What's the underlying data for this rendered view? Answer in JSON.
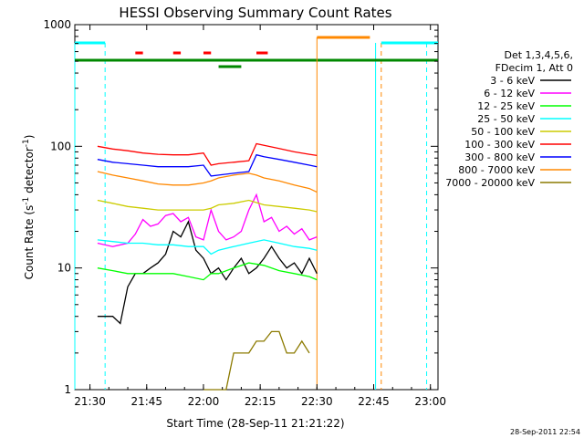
{
  "chart_data": {
    "type": "line",
    "title": "HESSI Observing Summary Count Rates",
    "xlabel": "Start Time (28-Sep-11 21:21:22)",
    "ylabel": "Count Rate (s",
    "ylabel_sup": "-1",
    "ylabel_rest": " detector",
    "ylabel_sup2": "-1",
    "ylabel_end": ")",
    "yscale": "log",
    "ylim": [
      1,
      1000
    ],
    "xlim_min": [
      1286,
      1382
    ],
    "x_ticks": [
      {
        "value": 1290,
        "label": "21:30"
      },
      {
        "value": 1305,
        "label": "21:45"
      },
      {
        "value": 1320,
        "label": "22:00"
      },
      {
        "value": 1335,
        "label": "22:15"
      },
      {
        "value": 1350,
        "label": "22:30"
      },
      {
        "value": 1365,
        "label": "22:45"
      },
      {
        "value": 1380,
        "label": "23:00"
      }
    ],
    "y_ticks": [
      {
        "value": 1,
        "label": "1"
      },
      {
        "value": 10,
        "label": "10"
      },
      {
        "value": 100,
        "label": "100"
      },
      {
        "value": 1000,
        "label": "1000"
      }
    ],
    "timestamp": "28-Sep-2011 22:54",
    "legend": {
      "header1": "Det 1,3,4,5,6,",
      "header2": "FDecim 1, Att 0",
      "placement": "right"
    },
    "series": [
      {
        "name": "3 - 6 keV",
        "color": "#000000",
        "x": [
          1292,
          1296,
          1298,
          1300,
          1302,
          1304,
          1306,
          1308,
          1310,
          1312,
          1314,
          1316,
          1318,
          1320,
          1322,
          1324,
          1326,
          1328,
          1330,
          1332,
          1334,
          1336,
          1338,
          1340,
          1342,
          1344,
          1346,
          1348,
          1350
        ],
        "y": [
          4,
          4,
          3.5,
          7,
          9,
          9,
          10,
          11,
          13,
          20,
          18,
          24,
          14,
          12,
          9,
          10,
          8,
          10,
          12,
          9,
          10,
          12,
          15,
          12,
          10,
          11,
          9,
          12,
          9
        ]
      },
      {
        "name": "6 - 12 keV",
        "color": "#ff00ff",
        "x": [
          1292,
          1296,
          1300,
          1302,
          1304,
          1306,
          1308,
          1310,
          1312,
          1314,
          1316,
          1318,
          1320,
          1322,
          1324,
          1326,
          1328,
          1330,
          1332,
          1334,
          1336,
          1338,
          1340,
          1342,
          1344,
          1346,
          1348,
          1350
        ],
        "y": [
          16,
          15,
          16,
          19,
          25,
          22,
          23,
          27,
          28,
          24,
          26,
          18,
          17,
          30,
          20,
          17,
          18,
          20,
          30,
          40,
          24,
          26,
          20,
          22,
          19,
          21,
          17,
          18
        ]
      },
      {
        "name": "12 - 25 keV",
        "color": "#00ff00",
        "x": [
          1292,
          1296,
          1300,
          1304,
          1308,
          1312,
          1316,
          1320,
          1322,
          1324,
          1328,
          1332,
          1336,
          1340,
          1344,
          1348,
          1350
        ],
        "y": [
          10,
          9.5,
          9,
          9,
          9,
          9,
          8.5,
          8,
          9,
          9,
          10,
          11,
          10.5,
          9.5,
          9,
          8.5,
          8
        ]
      },
      {
        "name": "25 - 50 keV",
        "color": "#00ffff",
        "x": [
          1292,
          1296,
          1300,
          1304,
          1308,
          1312,
          1316,
          1320,
          1322,
          1324,
          1328,
          1332,
          1336,
          1340,
          1344,
          1348,
          1350
        ],
        "y": [
          17,
          16.5,
          16,
          16,
          15.5,
          15.5,
          15,
          15,
          13,
          14,
          15,
          16,
          17,
          16,
          15,
          14.5,
          14
        ]
      },
      {
        "name": "50 - 100 keV",
        "color": "#cccc00",
        "x": [
          1292,
          1296,
          1300,
          1304,
          1308,
          1312,
          1316,
          1320,
          1322,
          1324,
          1328,
          1332,
          1336,
          1340,
          1344,
          1348,
          1350
        ],
        "y": [
          36,
          34,
          32,
          31,
          30,
          30,
          30,
          30,
          31,
          33,
          34,
          36,
          33,
          32,
          31,
          30,
          29
        ]
      },
      {
        "name": "100 - 300 keV",
        "color": "#ff0000",
        "x": [
          1292,
          1296,
          1300,
          1304,
          1308,
          1312,
          1316,
          1320,
          1322,
          1324,
          1328,
          1332,
          1334,
          1336,
          1340,
          1344,
          1348,
          1350
        ],
        "y": [
          100,
          95,
          92,
          88,
          86,
          85,
          85,
          88,
          70,
          72,
          74,
          76,
          105,
          102,
          96,
          90,
          86,
          84
        ]
      },
      {
        "name": "300 - 800 keV",
        "color": "#0000ff",
        "x": [
          1292,
          1296,
          1300,
          1304,
          1308,
          1312,
          1316,
          1320,
          1322,
          1324,
          1328,
          1332,
          1334,
          1336,
          1340,
          1344,
          1348,
          1350
        ],
        "y": [
          78,
          74,
          72,
          70,
          68,
          68,
          68,
          70,
          57,
          58,
          60,
          62,
          85,
          82,
          78,
          74,
          70,
          68
        ]
      },
      {
        "name": "800 - 7000 keV",
        "color": "#ff8800",
        "x": [
          1292,
          1296,
          1300,
          1304,
          1308,
          1312,
          1316,
          1320,
          1322,
          1324,
          1328,
          1332,
          1334,
          1336,
          1340,
          1344,
          1348,
          1350
        ],
        "y": [
          62,
          58,
          55,
          52,
          49,
          48,
          48,
          50,
          52,
          55,
          58,
          60,
          58,
          55,
          52,
          48,
          45,
          42
        ]
      },
      {
        "name": "7000 - 20000 keV",
        "color": "#8c7a00",
        "x": [
          1320,
          1324,
          1326,
          1328,
          1330,
          1332,
          1334,
          1336,
          1338,
          1340,
          1342,
          1344,
          1346,
          1348
        ],
        "y": [
          1,
          1,
          1,
          2,
          2,
          2,
          2.5,
          2.5,
          3,
          3,
          2,
          2,
          2.5,
          2
        ]
      }
    ]
  }
}
